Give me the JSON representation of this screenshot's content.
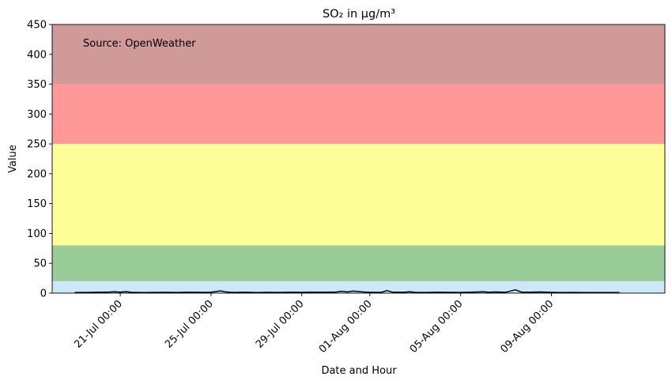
{
  "chart_data": {
    "type": "line",
    "title": "SO₂ in µg/m³",
    "xlabel": "Date and Hour",
    "ylabel": "Value",
    "annotation": "Source: OpenWeather",
    "ylim": [
      0,
      450
    ],
    "yticks": [
      0,
      50,
      100,
      150,
      200,
      250,
      300,
      350,
      400,
      450
    ],
    "xlim": [
      "2024-07-18T00:00",
      "2024-08-14T00:00"
    ],
    "xticks": [
      {
        "x": "2024-07-21T00:00",
        "label": "21-Jul 00:00"
      },
      {
        "x": "2024-07-25T00:00",
        "label": "25-Jul 00:00"
      },
      {
        "x": "2024-07-29T00:00",
        "label": "29-Jul 00:00"
      },
      {
        "x": "2024-08-01T00:00",
        "label": "01-Aug 00:00"
      },
      {
        "x": "2024-08-05T00:00",
        "label": "05-Aug 00:00"
      },
      {
        "x": "2024-08-09T00:00",
        "label": "09-Aug 00:00"
      }
    ],
    "bands": [
      {
        "from": 0,
        "to": 20,
        "color": "#cce7f8"
      },
      {
        "from": 20,
        "to": 80,
        "color": "#99cc99"
      },
      {
        "from": 80,
        "to": 250,
        "color": "#ffff99"
      },
      {
        "from": 250,
        "to": 350,
        "color": "#ff9999"
      },
      {
        "from": 350,
        "to": 450,
        "color": "#cf9a97"
      }
    ],
    "series": [
      {
        "color": "#000000",
        "points": [
          [
            "2024-07-19T00:00",
            1.0
          ],
          [
            "2024-07-19T12:00",
            1.2
          ],
          [
            "2024-07-20T00:00",
            1.4
          ],
          [
            "2024-07-20T12:00",
            1.8
          ],
          [
            "2024-07-20T18:00",
            2.4
          ],
          [
            "2024-07-21T00:00",
            1.6
          ],
          [
            "2024-07-21T06:00",
            2.5
          ],
          [
            "2024-07-21T12:00",
            1.3
          ],
          [
            "2024-07-22T00:00",
            1.1
          ],
          [
            "2024-07-22T12:00",
            1.2
          ],
          [
            "2024-07-23T00:00",
            1.3
          ],
          [
            "2024-07-23T12:00",
            1.2
          ],
          [
            "2024-07-24T00:00",
            1.4
          ],
          [
            "2024-07-24T12:00",
            1.3
          ],
          [
            "2024-07-25T00:00",
            1.5
          ],
          [
            "2024-07-25T06:00",
            2.8
          ],
          [
            "2024-07-25T10:00",
            3.8
          ],
          [
            "2024-07-25T14:00",
            2.4
          ],
          [
            "2024-07-25T20:00",
            1.5
          ],
          [
            "2024-07-26T00:00",
            1.2
          ],
          [
            "2024-07-26T12:00",
            1.4
          ],
          [
            "2024-07-27T00:00",
            1.1
          ],
          [
            "2024-07-27T12:00",
            1.3
          ],
          [
            "2024-07-28T00:00",
            1.2
          ],
          [
            "2024-07-28T12:00",
            1.4
          ],
          [
            "2024-07-29T00:00",
            1.3
          ],
          [
            "2024-07-29T12:00",
            1.6
          ],
          [
            "2024-07-30T00:00",
            1.5
          ],
          [
            "2024-07-30T12:00",
            1.8
          ],
          [
            "2024-07-30T18:00",
            3.2
          ],
          [
            "2024-07-31T00:00",
            2.0
          ],
          [
            "2024-07-31T06:00",
            3.4
          ],
          [
            "2024-07-31T12:00",
            2.6
          ],
          [
            "2024-07-31T18:00",
            1.8
          ],
          [
            "2024-08-01T00:00",
            1.5
          ],
          [
            "2024-08-01T12:00",
            1.3
          ],
          [
            "2024-08-01T18:00",
            4.2
          ],
          [
            "2024-08-02T00:00",
            1.6
          ],
          [
            "2024-08-02T12:00",
            1.4
          ],
          [
            "2024-08-02T18:00",
            2.4
          ],
          [
            "2024-08-03T00:00",
            1.3
          ],
          [
            "2024-08-03T12:00",
            1.2
          ],
          [
            "2024-08-04T00:00",
            1.4
          ],
          [
            "2024-08-04T12:00",
            1.3
          ],
          [
            "2024-08-05T00:00",
            1.2
          ],
          [
            "2024-08-05T12:00",
            1.6
          ],
          [
            "2024-08-06T00:00",
            2.4
          ],
          [
            "2024-08-06T06:00",
            1.4
          ],
          [
            "2024-08-06T12:00",
            2.0
          ],
          [
            "2024-08-07T00:00",
            1.6
          ],
          [
            "2024-08-07T10:00",
            5.6
          ],
          [
            "2024-08-07T16:00",
            1.8
          ],
          [
            "2024-08-08T00:00",
            1.4
          ],
          [
            "2024-08-08T12:00",
            2.0
          ],
          [
            "2024-08-09T00:00",
            1.3
          ],
          [
            "2024-08-09T12:00",
            1.1
          ],
          [
            "2024-08-10T00:00",
            1.2
          ],
          [
            "2024-08-10T12:00",
            1.0
          ],
          [
            "2024-08-11T00:00",
            1.1
          ],
          [
            "2024-08-11T12:00",
            1.0
          ],
          [
            "2024-08-12T00:00",
            1.0
          ]
        ]
      }
    ],
    "legend": "none",
    "grid": false
  }
}
